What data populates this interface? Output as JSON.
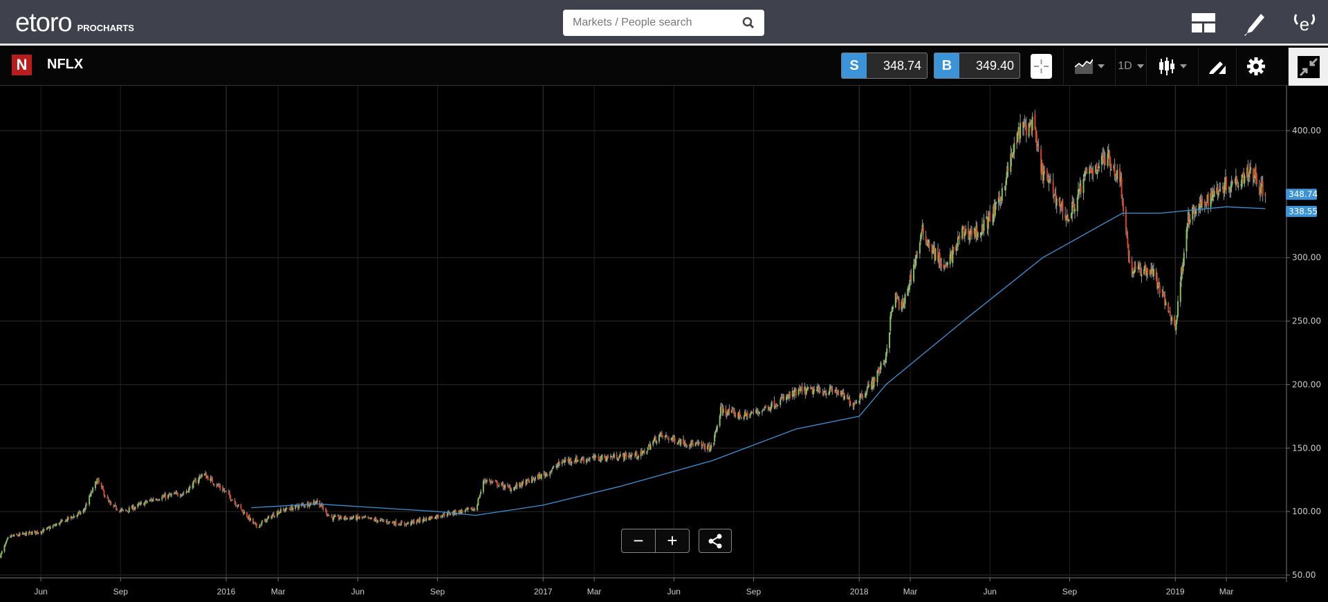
{
  "header": {
    "logo_text": "etoro",
    "logo_sub": "PROCHARTS",
    "search_placeholder": "Markets / People search",
    "icons": [
      "layout-icon",
      "pencil-icon",
      "etoro-user-icon"
    ]
  },
  "toolbar": {
    "symbol": "NFLX",
    "sell_label": "S",
    "sell_price": "348.74",
    "buy_label": "B",
    "buy_price": "349.40",
    "interval": "1D",
    "icons": [
      "crosshair-icon",
      "indicators-icon",
      "candles-icon",
      "drawing-icon",
      "gear-icon",
      "collapse-icon"
    ]
  },
  "zoom_controls": {
    "minus": "−",
    "plus": "+"
  },
  "colors": {
    "up": "#86c45a",
    "down": "#e0401c",
    "ma": "#3b94d9",
    "price_tag": "#3b94d9"
  },
  "chart_data": {
    "type": "candlestick",
    "title": "",
    "ylim": [
      47,
      430
    ],
    "y_ticks": [
      "400.00",
      "300.00",
      "250.00",
      "200.00",
      "150.00",
      "100.00",
      "50.00"
    ],
    "y_tick_values": [
      400,
      300,
      250,
      200,
      150,
      100,
      50
    ],
    "x_ticks": [
      {
        "label": "Jun",
        "date": "2015-06-01"
      },
      {
        "label": "Sep",
        "date": "2015-09-01"
      },
      {
        "label": "2016",
        "date": "2016-01-01"
      },
      {
        "label": "Mar",
        "date": "2016-03-01"
      },
      {
        "label": "Jun",
        "date": "2016-06-01"
      },
      {
        "label": "Sep",
        "date": "2016-09-01"
      },
      {
        "label": "2017",
        "date": "2017-01-01"
      },
      {
        "label": "Mar",
        "date": "2017-03-01"
      },
      {
        "label": "Jun",
        "date": "2017-06-01"
      },
      {
        "label": "Sep",
        "date": "2017-09-01"
      },
      {
        "label": "2018",
        "date": "2018-01-01"
      },
      {
        "label": "Mar",
        "date": "2018-03-01"
      },
      {
        "label": "Jun",
        "date": "2018-06-01"
      },
      {
        "label": "Sep",
        "date": "2018-09-01"
      },
      {
        "label": "2019",
        "date": "2019-01-01"
      },
      {
        "label": "Mar",
        "date": "2019-03-01"
      }
    ],
    "price_path": [
      [
        "2015-04-15",
        65
      ],
      [
        "2015-04-25",
        80
      ],
      [
        "2015-06-05",
        85
      ],
      [
        "2015-07-20",
        100
      ],
      [
        "2015-08-05",
        125
      ],
      [
        "2015-08-20",
        105
      ],
      [
        "2015-09-05",
        100
      ],
      [
        "2015-10-10",
        110
      ],
      [
        "2015-11-15",
        115
      ],
      [
        "2015-12-05",
        130
      ],
      [
        "2016-01-01",
        115
      ],
      [
        "2016-02-05",
        88
      ],
      [
        "2016-03-01",
        100
      ],
      [
        "2016-04-15",
        108
      ],
      [
        "2016-05-01",
        95
      ],
      [
        "2016-06-05",
        95
      ],
      [
        "2016-07-05",
        92
      ],
      [
        "2016-07-25",
        90
      ],
      [
        "2016-09-10",
        98
      ],
      [
        "2016-10-15",
        102
      ],
      [
        "2016-10-25",
        125
      ],
      [
        "2016-11-25",
        118
      ],
      [
        "2017-01-05",
        130
      ],
      [
        "2017-01-25",
        140
      ],
      [
        "2017-03-05",
        142
      ],
      [
        "2017-04-25",
        145
      ],
      [
        "2017-05-15",
        160
      ],
      [
        "2017-06-10",
        155
      ],
      [
        "2017-07-15",
        150
      ],
      [
        "2017-07-25",
        180
      ],
      [
        "2017-08-20",
        175
      ],
      [
        "2017-09-10",
        180
      ],
      [
        "2017-10-25",
        195
      ],
      [
        "2017-12-05",
        195
      ],
      [
        "2017-12-25",
        185
      ],
      [
        "2018-01-15",
        200
      ],
      [
        "2018-01-31",
        220
      ],
      [
        "2018-02-10",
        270
      ],
      [
        "2018-02-20",
        260
      ],
      [
        "2018-03-15",
        320
      ],
      [
        "2018-04-10",
        290
      ],
      [
        "2018-04-30",
        320
      ],
      [
        "2018-05-20",
        320
      ],
      [
        "2018-06-10",
        340
      ],
      [
        "2018-06-20",
        365
      ],
      [
        "2018-07-05",
        400
      ],
      [
        "2018-07-20",
        405
      ],
      [
        "2018-07-30",
        370
      ],
      [
        "2018-08-30",
        330
      ],
      [
        "2018-09-20",
        365
      ],
      [
        "2018-10-15",
        380
      ],
      [
        "2018-10-30",
        360
      ],
      [
        "2018-11-10",
        290
      ],
      [
        "2018-12-05",
        290
      ],
      [
        "2018-12-20",
        265
      ],
      [
        "2019-01-01",
        245
      ],
      [
        "2019-01-15",
        330
      ],
      [
        "2019-01-30",
        340
      ],
      [
        "2019-02-20",
        355
      ],
      [
        "2019-03-10",
        360
      ],
      [
        "2019-03-30",
        370
      ],
      [
        "2019-04-15",
        348.74
      ]
    ],
    "moving_average": [
      [
        "2016-01-30",
        103
      ],
      [
        "2016-04-15",
        106
      ],
      [
        "2016-09-01",
        100
      ],
      [
        "2016-10-15",
        97
      ],
      [
        "2017-01-01",
        105
      ],
      [
        "2017-04-01",
        120
      ],
      [
        "2017-07-15",
        140
      ],
      [
        "2017-10-20",
        165
      ],
      [
        "2018-01-01",
        175
      ],
      [
        "2018-02-01",
        200
      ],
      [
        "2018-05-01",
        250
      ],
      [
        "2018-08-01",
        300
      ],
      [
        "2018-11-01",
        335
      ],
      [
        "2018-12-15",
        335
      ],
      [
        "2019-03-01",
        340
      ],
      [
        "2019-04-15",
        338.55
      ]
    ],
    "last_price_label": "348.74",
    "ma_label": "338.55"
  }
}
